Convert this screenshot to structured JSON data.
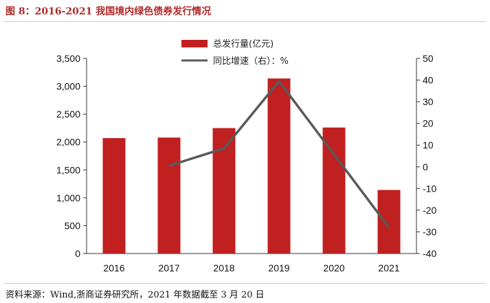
{
  "header": {
    "title": "图 8：2016-2021 我国境内绿色债券发行情况"
  },
  "footer": {
    "source": "资料来源：Wind,浙商证券研究所，2021 年数据截至 3 月 20 日"
  },
  "colors": {
    "bar": "#c02020",
    "line": "#595959",
    "title": "#b22a2a"
  },
  "chart_data": {
    "type": "bar",
    "categories": [
      "2016",
      "2017",
      "2018",
      "2019",
      "2020",
      "2021"
    ],
    "series": [
      {
        "name": "总发行量(亿元)",
        "kind": "bar",
        "axis": "left",
        "values": [
          2070,
          2080,
          2250,
          3140,
          2260,
          1140
        ]
      },
      {
        "name": "同比增速（右）：%",
        "kind": "line",
        "axis": "right",
        "values": [
          null,
          0.5,
          8.5,
          39.5,
          null,
          -28
        ]
      }
    ],
    "left_axis": {
      "ylim": [
        0,
        3500
      ],
      "ticks": [
        "0",
        "500",
        "1,000",
        "1,500",
        "2,000",
        "2,500",
        "3,000",
        "3,500"
      ]
    },
    "right_axis": {
      "ylim": [
        -40,
        50
      ],
      "ticks": [
        "-40",
        "-30",
        "-20",
        "-10",
        "0",
        "10",
        "20",
        "30",
        "40",
        "50"
      ]
    },
    "legend_position": "top-center",
    "grid": false
  }
}
